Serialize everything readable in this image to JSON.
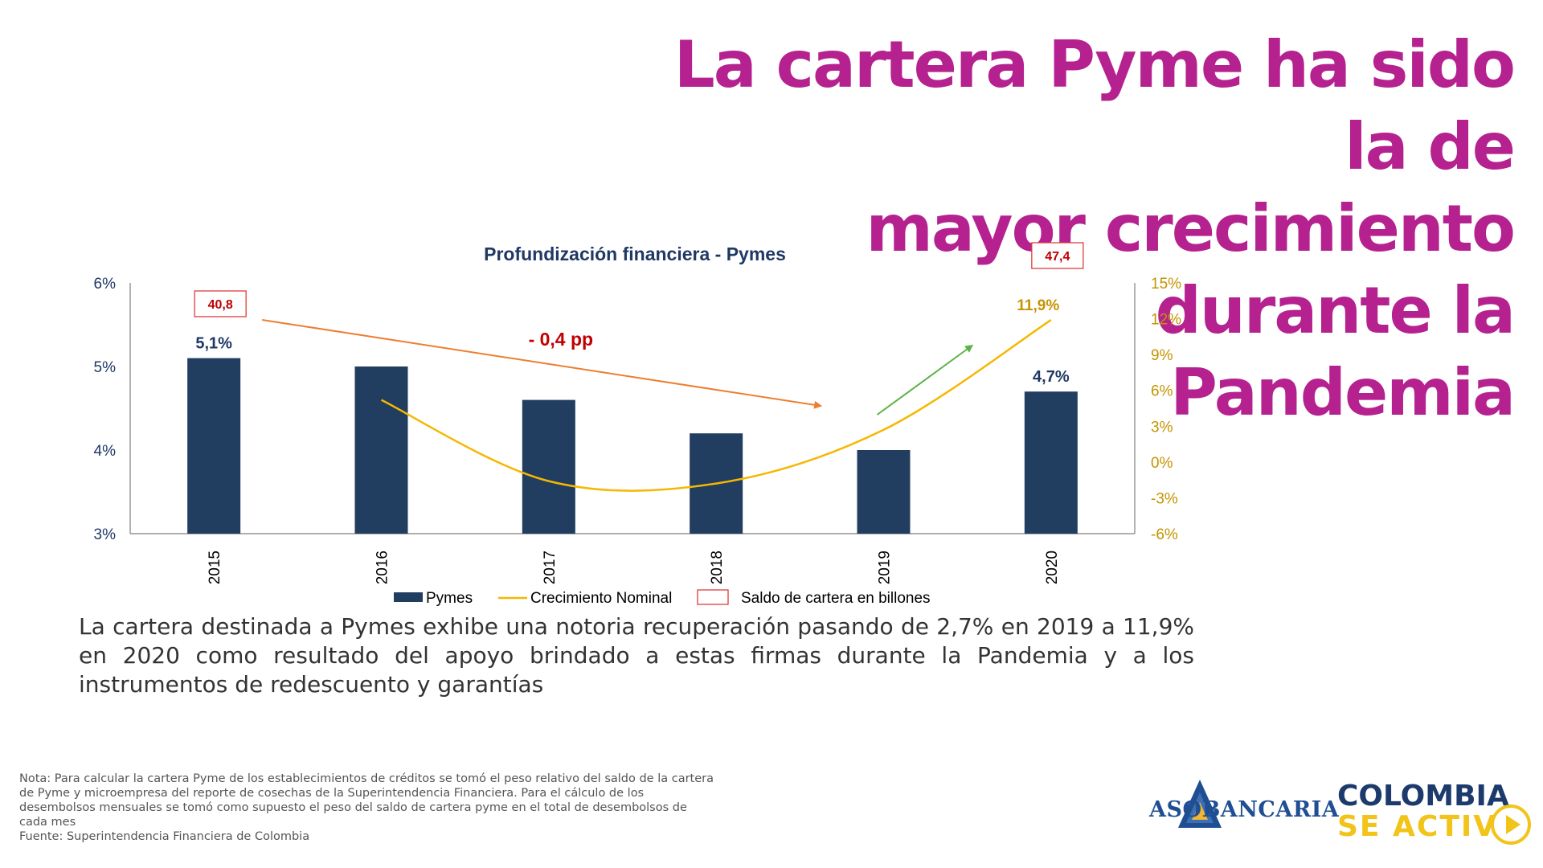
{
  "headline": {
    "line1": "La cartera Pyme ha sido la de",
    "line2": "mayor crecimiento durante la",
    "line3": "Pandemia"
  },
  "description": "La cartera destinada a Pymes exhibe una notoria recuperación pasando de 2,7% en 2019 a 11,9% en 2020 como resultado del apoyo brindado a estas firmas durante la Pandemia y a los instrumentos de redescuento y garantías",
  "note": {
    "line1": "Nota: Para calcular la cartera Pyme de los establecimientos de créditos se tomó el peso relativo del saldo de la cartera",
    "line2": "de Pyme y microempresa del reporte de cosechas de la Superintendencia Financiera. Para el cálculo de los",
    "line3": "desembolsos mensuales se tomó como supuesto el peso del saldo de cartera pyme en el total de desembolsos de",
    "line4": "cada mes",
    "line5": "Fuente: Superintendencia Financiera de Colombia"
  },
  "logos": {
    "asobancaria": "ASOBANCARIA",
    "colombia_line1": "COLOMBIA",
    "colombia_line2": "SE ACTIV"
  },
  "colors": {
    "bar": "#213d5f",
    "growth_line": "#f5b800",
    "trend_arrow": "#ee7d31",
    "up_arrow": "#5cb246",
    "saldo_box": "#e03c3c",
    "headline": "#b5218f",
    "right_axis": "#c59400"
  },
  "chart_data": {
    "type": "bar",
    "title": "Profundización financiera - Pymes",
    "categories": [
      "2015",
      "2016",
      "2017",
      "2018",
      "2019",
      "2020"
    ],
    "series": [
      {
        "name": "Pymes",
        "type": "bar",
        "axis": "left",
        "values": [
          5.1,
          5.0,
          4.6,
          4.2,
          4.0,
          4.7
        ]
      },
      {
        "name": "Crecimiento Nominal",
        "type": "line",
        "axis": "right",
        "values": [
          null,
          5.2,
          -1.6,
          -1.8,
          2.7,
          11.9
        ]
      }
    ],
    "y_left": {
      "min": 3,
      "max": 6,
      "ticks": [
        "3%",
        "4%",
        "5%",
        "6%"
      ]
    },
    "y_right": {
      "min": -6,
      "max": 15,
      "ticks": [
        "-6%",
        "-3%",
        "0%",
        "3%",
        "6%",
        "9%",
        "12%",
        "15%"
      ]
    },
    "data_labels": [
      {
        "category": "2015",
        "text": "5,1%"
      },
      {
        "category": "2020",
        "text": "4,7%"
      }
    ],
    "growth_label": {
      "category": "2020",
      "text": "11,9%"
    },
    "saldo_boxes": [
      {
        "category": "2015",
        "text": "40,8"
      },
      {
        "category": "2020",
        "text": "47,4"
      }
    ],
    "annotation": "- 0,4 pp",
    "legend": {
      "position": "bottom",
      "items": [
        "Pymes",
        "Crecimiento Nominal",
        "Saldo de cartera en billones"
      ]
    },
    "grid": false
  }
}
